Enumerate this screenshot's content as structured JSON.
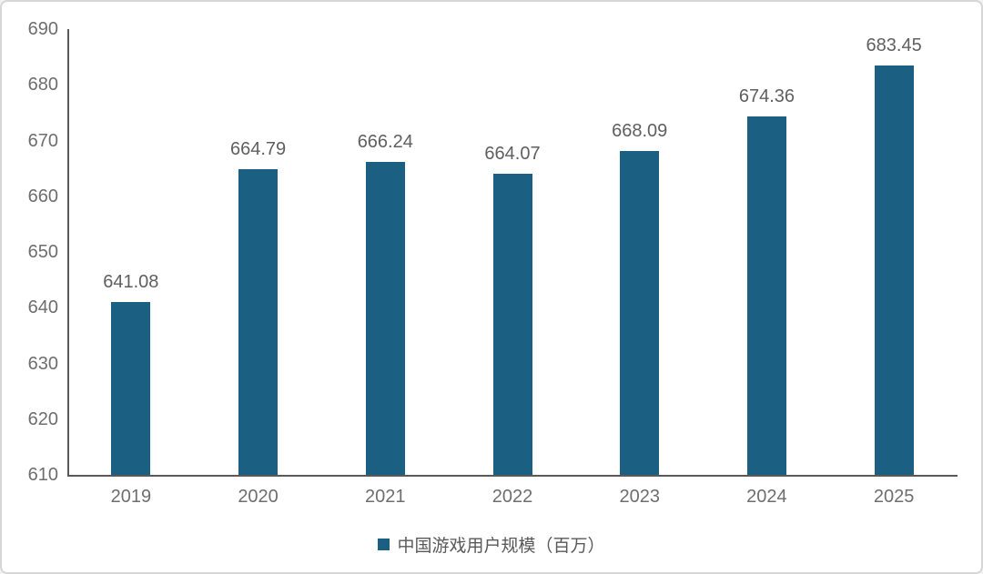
{
  "chart_data": {
    "type": "bar",
    "title": "",
    "categories": [
      "2019",
      "2020",
      "2021",
      "2022",
      "2023",
      "2024",
      "2025"
    ],
    "series": [
      {
        "name": "中国游戏用户规模（百万）",
        "values": [
          641.08,
          664.79,
          666.24,
          664.07,
          668.09,
          674.36,
          683.45
        ]
      }
    ],
    "value_labels": [
      "641.08",
      "664.79",
      "666.24",
      "664.07",
      "668.09",
      "674.36",
      "683.45"
    ],
    "xlabel": "",
    "ylabel": "",
    "ylim": [
      610,
      690
    ],
    "ytick_step": 10,
    "ytick_labels": [
      "610",
      "620",
      "630",
      "640",
      "650",
      "660",
      "670",
      "680",
      "690"
    ],
    "grid": false,
    "legend_position": "bottom",
    "colors": {
      "bar": "#1b6083",
      "axis": "#595959",
      "tick_text": "#6e6e6e",
      "value_text": "#5f5f5f",
      "legend_text": "#595959",
      "frame_border": "#d6d6d6",
      "background": "#ffffff"
    }
  },
  "legend": {
    "label": "中国游戏用户规模（百万）"
  }
}
